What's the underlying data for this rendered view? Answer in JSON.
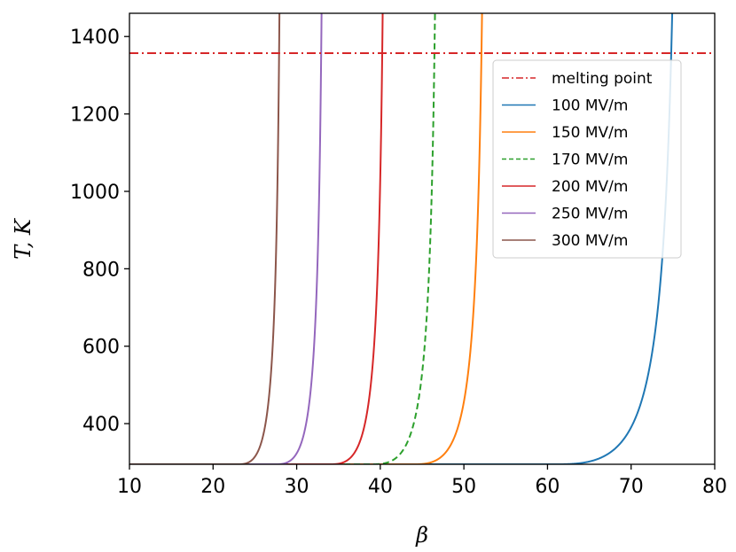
{
  "chart_data": {
    "type": "line",
    "xlabel": "β",
    "ylabel": "T, K",
    "xlim": [
      10,
      80
    ],
    "ylim": [
      295,
      1460
    ],
    "xticks": [
      10,
      20,
      30,
      40,
      50,
      60,
      70,
      80
    ],
    "yticks": [
      400,
      600,
      800,
      1000,
      1200,
      1400
    ],
    "melting_point": {
      "name": "melting point",
      "value": 1357,
      "color": "#d62728",
      "style": "dashdot"
    },
    "legend_position": "upper-right",
    "series": [
      {
        "name": "100 MV/m",
        "color": "#1f77b4",
        "style": "solid",
        "start": 61.0,
        "asymptote": 76.5
      },
      {
        "name": "150 MV/m",
        "color": "#ff7f0e",
        "style": "solid",
        "start": 44.0,
        "asymptote": 53.1
      },
      {
        "name": "170 MV/m",
        "color": "#2ca02c",
        "style": "dashed",
        "start": 39.0,
        "asymptote": 47.4
      },
      {
        "name": "200 MV/m",
        "color": "#d62728",
        "style": "solid",
        "start": 34.0,
        "asymptote": 41.0
      },
      {
        "name": "250 MV/m",
        "color": "#9467bd",
        "style": "solid",
        "start": 27.5,
        "asymptote": 33.6
      },
      {
        "name": "300 MV/m",
        "color": "#8c564b",
        "style": "solid",
        "start": 23.0,
        "asymptote": 28.5
      }
    ]
  }
}
